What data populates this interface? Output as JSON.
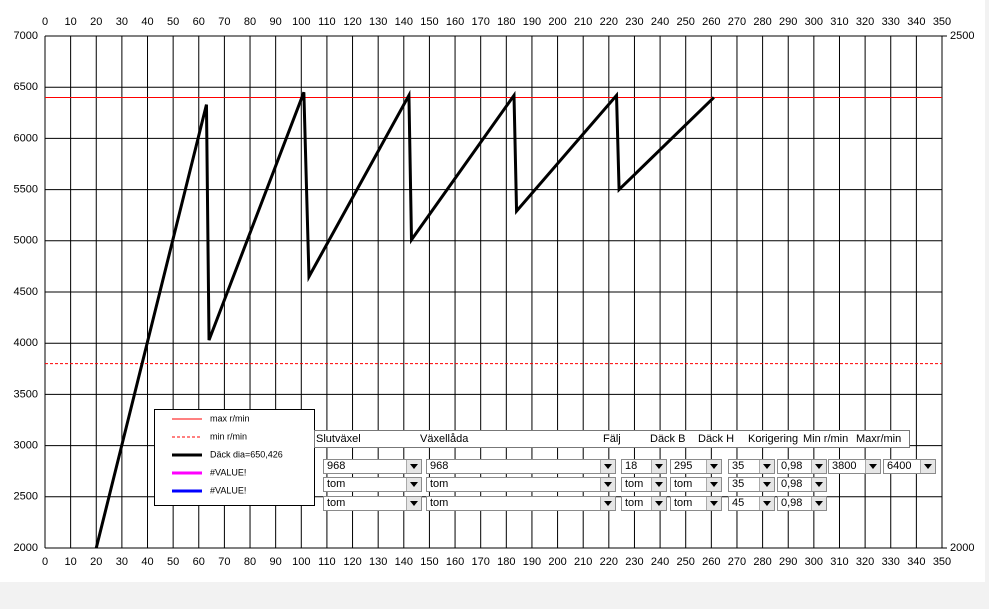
{
  "chart_data": {
    "type": "line",
    "xlim": [
      0,
      350
    ],
    "xticks": [
      0,
      10,
      20,
      30,
      40,
      50,
      60,
      70,
      80,
      90,
      100,
      110,
      120,
      130,
      140,
      150,
      160,
      170,
      180,
      190,
      200,
      210,
      220,
      230,
      240,
      250,
      260,
      270,
      280,
      290,
      300,
      310,
      320,
      330,
      340,
      350
    ],
    "ylim": [
      2000,
      7000
    ],
    "yticks": [
      2000,
      2500,
      3000,
      3500,
      4000,
      4500,
      5000,
      5500,
      6000,
      6500,
      7000
    ],
    "y2lim": [
      2000,
      2500
    ],
    "y2ticks": [
      2000,
      2500
    ],
    "grid": true,
    "series": [
      {
        "name": "max r/min",
        "color": "#ff0000",
        "width": 1,
        "dash": false,
        "x": [
          0,
          350
        ],
        "values": [
          6400,
          6400
        ]
      },
      {
        "name": "min r/min",
        "color": "#ff0000",
        "width": 1,
        "dash": true,
        "x": [
          0,
          350
        ],
        "values": [
          3800,
          3800
        ]
      },
      {
        "name": "Däck dia=650,426",
        "color": "#000000",
        "width": 3,
        "dash": false,
        "x": [
          20,
          63,
          64,
          101,
          103,
          142,
          143,
          183,
          184,
          223,
          224,
          261
        ],
        "values": [
          2000,
          6330,
          4030,
          6450,
          4650,
          6420,
          5010,
          6420,
          5290,
          6420,
          5500,
          6400
        ]
      },
      {
        "name": "#VALUE!",
        "color": "#ff00ff",
        "width": 3,
        "dash": false,
        "x": [],
        "values": []
      },
      {
        "name": "#VALUE!",
        "color": "#0000ff",
        "width": 3,
        "dash": false,
        "x": [],
        "values": []
      }
    ]
  },
  "controls": {
    "headers": [
      "Slutväxel",
      "Växellåda",
      "Fälj",
      "Däck B",
      "Däck H",
      "Korigering",
      "Min r/min",
      "Maxr/min"
    ],
    "rows": [
      [
        "968",
        "968",
        "18",
        "295",
        "35",
        "0,98",
        "3800",
        "6400"
      ],
      [
        "tom",
        "tom",
        "tom",
        "tom",
        "35",
        "0,98"
      ],
      [
        "tom",
        "tom",
        "tom",
        "tom",
        "45",
        "0,98"
      ]
    ]
  }
}
